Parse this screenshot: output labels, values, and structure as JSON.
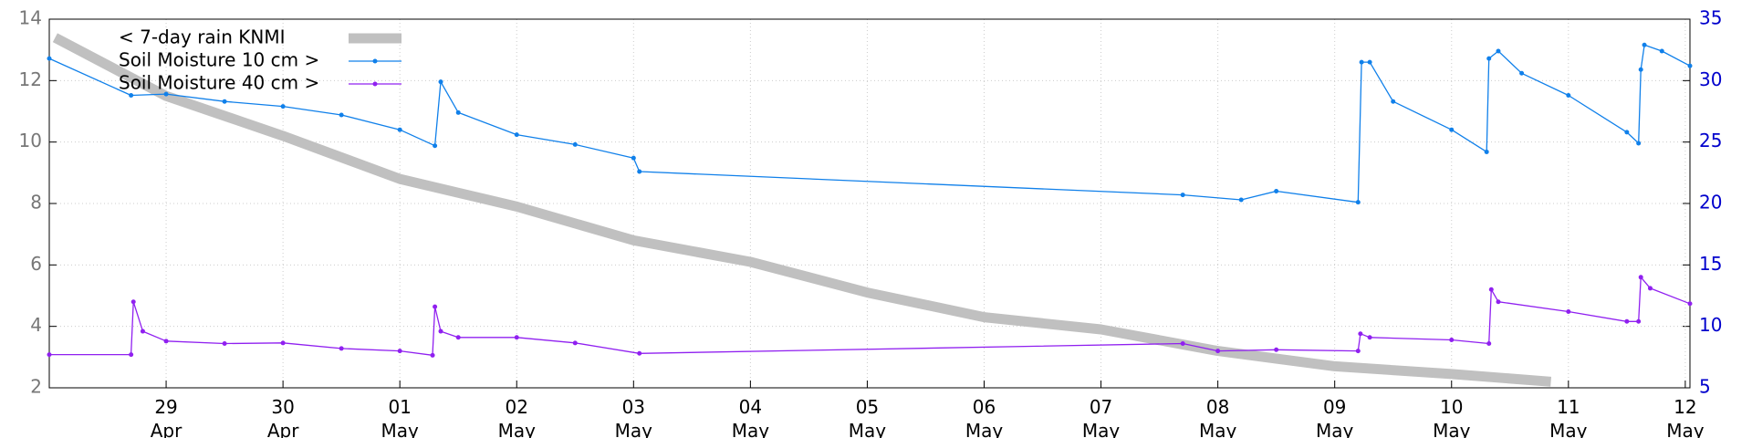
{
  "chart_data": {
    "type": "line",
    "xlim": [
      28,
      42.04
    ],
    "xticks": [
      {
        "value": 29,
        "label": "29 Apr"
      },
      {
        "value": 30,
        "label": "30 Apr"
      },
      {
        "value": 31,
        "label": "01 May"
      },
      {
        "value": 32,
        "label": "02 May"
      },
      {
        "value": 33,
        "label": "03 May"
      },
      {
        "value": 34,
        "label": "04 May"
      },
      {
        "value": 35,
        "label": "05 May"
      },
      {
        "value": 36,
        "label": "06 May"
      },
      {
        "value": 37,
        "label": "07 May"
      },
      {
        "value": 38,
        "label": "08 May"
      },
      {
        "value": 39,
        "label": "09 May"
      },
      {
        "value": 40,
        "label": "10 May"
      },
      {
        "value": 41,
        "label": "11 May"
      },
      {
        "value": 42,
        "label": "12 May"
      }
    ],
    "ylim": [
      2,
      14
    ],
    "yticks": [
      2,
      4,
      6,
      8,
      10,
      12,
      14
    ],
    "y2lim": [
      5,
      35
    ],
    "y2ticks": [
      5,
      10,
      15,
      20,
      25,
      30,
      35
    ],
    "grid": true,
    "legend": "upper left",
    "series": [
      {
        "name": "< 7-day rain KNMI",
        "color": "#c0c0c0",
        "axis": "y",
        "markers": false,
        "x": [
          28.05,
          29,
          30,
          31,
          32,
          33,
          34,
          35,
          36,
          37,
          38,
          39,
          40,
          40.85
        ],
        "values": [
          13.4,
          11.5,
          10.2,
          8.8,
          7.9,
          6.8,
          6.1,
          5.1,
          4.3,
          3.9,
          3.2,
          2.7,
          2.45,
          2.2
        ]
      },
      {
        "name": "Soil Moisture 10 cm >",
        "color": "#1080ea",
        "axis": "y2",
        "markers": true,
        "x": [
          28.0,
          28.7,
          29,
          29.5,
          30,
          30.5,
          31,
          31.3,
          31.35,
          31.5,
          32,
          32.5,
          33,
          33.05,
          37.7,
          38.2,
          38.5,
          39.2,
          39.23,
          39.3,
          39.5,
          40,
          40.3,
          40.32,
          40.4,
          40.6,
          41,
          41.5,
          41.6,
          41.62,
          41.65,
          41.8,
          42.04
        ],
        "values": [
          31.8,
          28.8,
          28.9,
          28.3,
          27.9,
          27.2,
          26.0,
          24.7,
          29.9,
          27.4,
          25.6,
          24.8,
          23.7,
          22.6,
          20.7,
          20.3,
          21.0,
          20.1,
          31.5,
          31.5,
          28.3,
          26.0,
          24.2,
          31.8,
          32.4,
          30.6,
          28.8,
          25.8,
          24.9,
          30.9,
          32.9,
          32.4,
          31.2
        ]
      },
      {
        "name": "Soil Moisture 40 cm >",
        "color": "#9020f0",
        "axis": "y2",
        "markers": true,
        "x": [
          28.0,
          28.7,
          28.72,
          28.8,
          29,
          29.5,
          30,
          30.5,
          31,
          31.28,
          31.3,
          31.35,
          31.5,
          32,
          32.5,
          33.05,
          37.7,
          38,
          38.5,
          39.2,
          39.22,
          39.3,
          40,
          40.32,
          40.34,
          40.4,
          41,
          41.5,
          41.6,
          41.62,
          41.7,
          42.04
        ],
        "values": [
          7.7,
          7.7,
          12.0,
          9.6,
          8.8,
          8.6,
          8.65,
          8.2,
          8.0,
          7.65,
          11.6,
          9.6,
          9.1,
          9.1,
          8.65,
          7.8,
          8.6,
          8.0,
          8.1,
          8.0,
          9.4,
          9.1,
          8.9,
          8.6,
          13.0,
          12.0,
          11.2,
          10.4,
          10.4,
          14.0,
          13.1,
          11.85
        ]
      }
    ]
  }
}
